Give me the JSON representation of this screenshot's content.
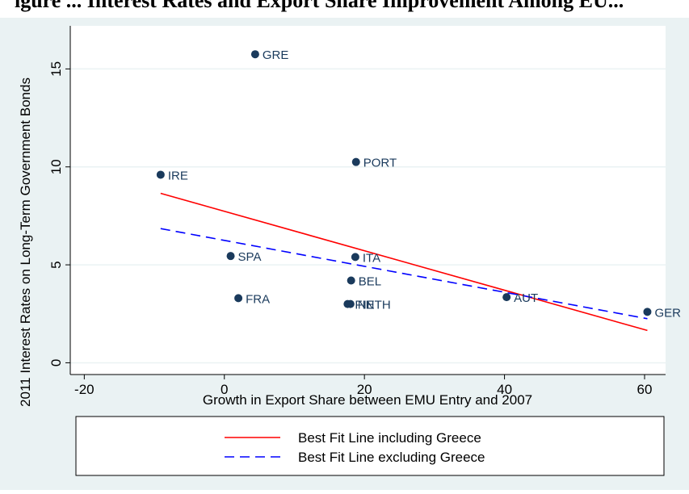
{
  "figure": {
    "title_fragment": "igure ... Interest Rates and Export Share Improvement Among EU..."
  },
  "chart_data": {
    "type": "scatter",
    "xlabel": "Growth in Export Share between EMU Entry and 2007",
    "ylabel": "2011 Interest Rates on Long-Term Government Bonds",
    "xlim": [
      -22,
      63
    ],
    "ylim": [
      -0.6,
      17.2
    ],
    "x_ticks": [
      "-20",
      "0",
      "20",
      "40",
      "60"
    ],
    "x_tick_values": [
      -20,
      0,
      20,
      40,
      60
    ],
    "y_ticks": [
      "0",
      "5",
      "10",
      "15"
    ],
    "y_tick_values": [
      0,
      5,
      10,
      15
    ],
    "grid": "horizontal",
    "points": [
      {
        "label": "GRE",
        "x": 4.4,
        "y": 15.75
      },
      {
        "label": "PORT",
        "x": 18.8,
        "y": 10.25
      },
      {
        "label": "IRE",
        "x": -9.1,
        "y": 9.6
      },
      {
        "label": "SPA",
        "x": 0.9,
        "y": 5.45
      },
      {
        "label": "ITA",
        "x": 18.7,
        "y": 5.4
      },
      {
        "label": "BEL",
        "x": 18.1,
        "y": 4.2
      },
      {
        "label": "FRA",
        "x": 2.0,
        "y": 3.3
      },
      {
        "label": "FIN",
        "x": 17.6,
        "y": 3.0
      },
      {
        "label": "NETH",
        "x": 18.0,
        "y": 3.0
      },
      {
        "label": "AUT",
        "x": 40.3,
        "y": 3.35
      },
      {
        "label": "GER",
        "x": 60.4,
        "y": 2.6
      }
    ],
    "series": [
      {
        "name": "Best Fit Line including Greece",
        "x": [
          -9.1,
          60.4
        ],
        "y": [
          8.65,
          1.65
        ],
        "color": "#ff0000",
        "style": "solid"
      },
      {
        "name": "Best Fit Line excluding Greece",
        "x": [
          -9.1,
          60.4
        ],
        "y": [
          6.85,
          2.25
        ],
        "color": "#0000ff",
        "style": "dashed"
      }
    ],
    "marker_color": "#1a3a5c",
    "label_color": "#1a3a5c",
    "legend_position": "bottom"
  }
}
